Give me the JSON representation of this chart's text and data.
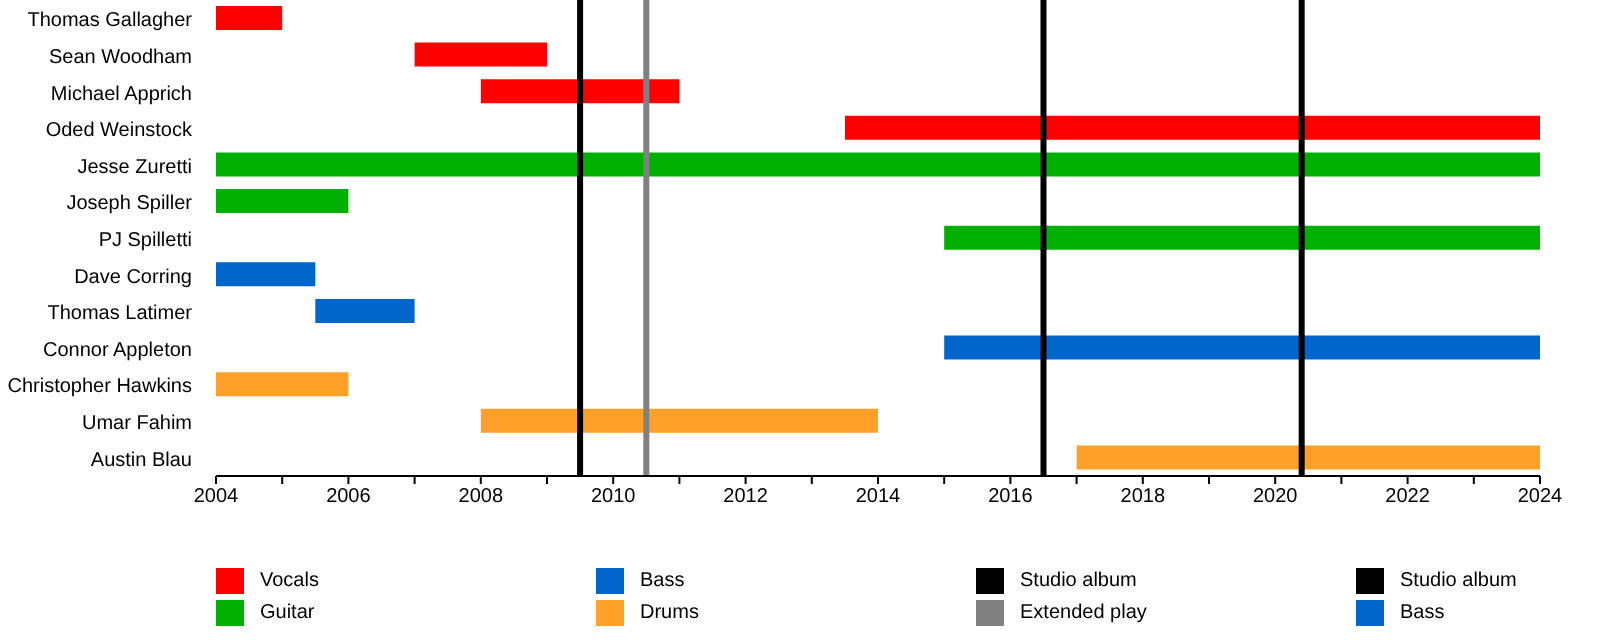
{
  "chart_data": {
    "type": "bar",
    "orientation": "horizontal",
    "stacked": true,
    "categories": [
      "Thomas Gallagher",
      "Sean Woodham",
      "Michael Apprich",
      "Oded Weinstock",
      "Jesse Zuretti",
      "Joseph Spiller",
      "PJ Spilletti",
      "Dave Corring",
      "Thomas Latimer",
      "Connor Appleton",
      "Christopher Hawkins",
      "Umar Fahim",
      "Austin Blau"
    ],
    "series": [
      {
        "name": "Vocals",
        "color": "#ff0000",
        "values": [
          1,
          2,
          3,
          10.5,
          null,
          null,
          null,
          null,
          null,
          null,
          null,
          null,
          null
        ],
        "base": [
          2004,
          2007,
          2008,
          2013.5,
          null,
          null,
          null,
          null,
          null,
          null,
          null,
          null,
          null
        ]
      },
      {
        "name": "Guitar",
        "color": "#00b000",
        "values": [
          null,
          null,
          null,
          null,
          20,
          2,
          9,
          null,
          null,
          null,
          null,
          null,
          null
        ],
        "base": [
          null,
          null,
          null,
          null,
          2004,
          2004,
          2015,
          null,
          null,
          null,
          null,
          null,
          null
        ]
      },
      {
        "name": "Bass",
        "color": "#0066cc",
        "values": [
          null,
          null,
          null,
          null,
          null,
          null,
          null,
          1.5,
          1.5,
          null,
          null,
          null,
          null
        ],
        "base": [
          null,
          null,
          null,
          null,
          null,
          null,
          null,
          2004,
          2005.5,
          null,
          null,
          null,
          null
        ]
      },
      {
        "name": "Drums",
        "color": "#ffa028",
        "values": [
          null,
          null,
          null,
          null,
          null,
          null,
          null,
          null,
          null,
          null,
          2,
          6,
          7
        ],
        "base": [
          null,
          null,
          null,
          null,
          null,
          null,
          null,
          null,
          null,
          null,
          2004,
          2008,
          2017
        ]
      },
      {
        "name": "Bass",
        "color": "#0066cc",
        "values": [
          null,
          null,
          null,
          null,
          null,
          null,
          null,
          null,
          null,
          9,
          null,
          null,
          null
        ],
        "base": [
          null,
          null,
          null,
          null,
          null,
          null,
          null,
          null,
          null,
          2015,
          null,
          null,
          null
        ]
      }
    ],
    "xlim": [
      2004,
      2024
    ],
    "xticks": [
      2004,
      {
        "value": 2005,
        "label": null
      },
      2006,
      {
        "value": 2007,
        "label": null
      },
      2008,
      {
        "value": 2009,
        "label": null
      },
      2010,
      {
        "value": 2011,
        "label": null
      },
      2012,
      {
        "value": 2013,
        "label": null
      },
      2014,
      {
        "value": 2015,
        "label": null
      },
      2016,
      {
        "value": 2017,
        "label": null
      },
      2018,
      {
        "value": 2019,
        "label": null
      },
      2020,
      {
        "value": 2021,
        "label": null
      },
      2022,
      {
        "value": 2023,
        "label": null
      },
      2024
    ],
    "ref_lines": [
      {
        "axis": "x",
        "value": 2009.5,
        "label": "Studio album",
        "color": "#000000"
      },
      {
        "axis": "x",
        "value": 2010.5,
        "label": "Extended play",
        "color": "#808080"
      },
      {
        "axis": "x",
        "value": 2016.5,
        "label": "Studio album",
        "color": "#000000"
      },
      {
        "axis": "x",
        "value": 2020.4,
        "color": "#000000"
      }
    ],
    "legend": "bottom"
  }
}
